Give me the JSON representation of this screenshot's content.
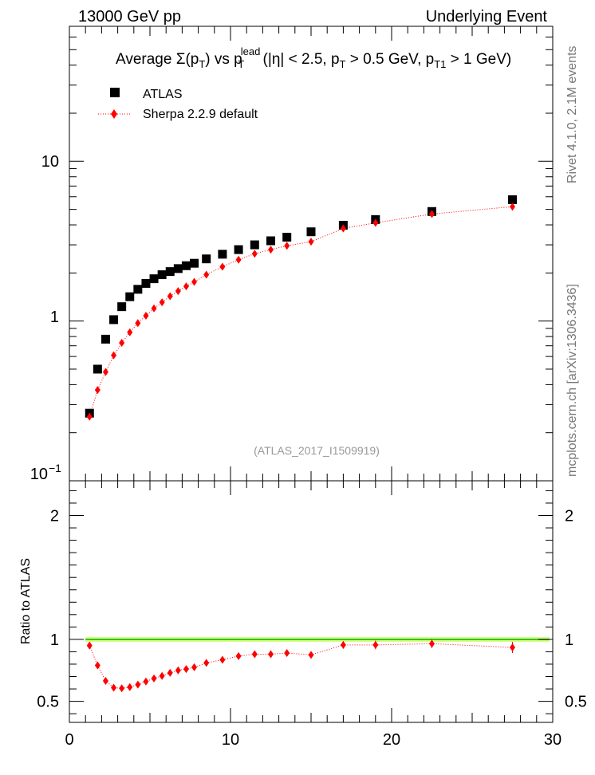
{
  "header": {
    "left": "13000 GeV pp",
    "right": "Underlying Event"
  },
  "side_labels": {
    "rivet": "Rivet 4.1.0,  2.1M events",
    "mcplots": "mcplots.cern.ch [arXiv:1306.3436]"
  },
  "chart_data": [
    {
      "type": "scatter",
      "panel": "main",
      "title": "Average Σ(pT) vs pT^lead (|η| < 2.5, pT > 0.5 GeV, pT1 > 1 GeV)",
      "title_parts": {
        "prefix": "Average ",
        "sigma": "Σ(p",
        "T": "T",
        "mid": ") vs p",
        "lead": "lead",
        "cuts_a": " (|η| < 2.5, p",
        "cuts_b": " > 0.5 GeV, p",
        "T1": "T1",
        "cuts_c": " > 1 GeV)"
      },
      "watermark": "(ATLAS_2017_I1509919)",
      "yscale": "log",
      "xlim": [
        0,
        30
      ],
      "ylim": [
        0.1,
        70
      ],
      "y_tick_labels": {
        "0.1": "10",
        "0.1_exp": "−1",
        "1": "1",
        "10": "10"
      },
      "x": [
        1.25,
        1.75,
        2.25,
        2.75,
        3.25,
        3.75,
        4.25,
        4.75,
        5.25,
        5.75,
        6.25,
        6.75,
        7.25,
        7.75,
        8.5,
        9.5,
        10.5,
        11.5,
        12.5,
        13.5,
        15.0,
        17.0,
        19.0,
        22.5,
        27.5
      ],
      "series": [
        {
          "name": "ATLAS",
          "marker": "square",
          "color": "#000000",
          "values": [
            0.265,
            0.5,
            0.77,
            1.02,
            1.23,
            1.42,
            1.58,
            1.72,
            1.84,
            1.95,
            2.04,
            2.13,
            2.22,
            2.3,
            2.45,
            2.62,
            2.8,
            3.0,
            3.18,
            3.35,
            3.62,
            3.98,
            4.32,
            4.85,
            5.75
          ]
        },
        {
          "name": "Sherpa 2.2.9 default",
          "marker": "diamond",
          "line": "dotted",
          "color": "#ff0000",
          "values": [
            0.252,
            0.37,
            0.48,
            0.61,
            0.73,
            0.85,
            0.97,
            1.08,
            1.2,
            1.31,
            1.43,
            1.54,
            1.65,
            1.76,
            1.95,
            2.19,
            2.42,
            2.64,
            2.8,
            2.96,
            3.14,
            3.8,
            4.12,
            4.68,
            5.2
          ]
        }
      ]
    },
    {
      "type": "scatter",
      "panel": "ratio",
      "ylabel": "Ratio to ATLAS",
      "xlim": [
        0,
        30
      ],
      "ylim": [
        0.33,
        2.28
      ],
      "x_ticks": [
        0,
        10,
        20,
        30
      ],
      "y_ticks": [
        0.5,
        1,
        2
      ],
      "x": [
        1.25,
        1.75,
        2.25,
        2.75,
        3.25,
        3.75,
        4.25,
        4.75,
        5.25,
        5.75,
        6.25,
        6.75,
        7.25,
        7.75,
        8.5,
        9.5,
        10.5,
        11.5,
        12.5,
        13.5,
        15.0,
        17.0,
        19.0,
        22.5,
        27.5
      ],
      "series": [
        {
          "name": "Sherpa 2.2.9 default / ATLAS",
          "color": "#ff0000",
          "values": [
            0.95,
            0.79,
            0.665,
            0.61,
            0.605,
            0.615,
            0.635,
            0.66,
            0.685,
            0.705,
            0.73,
            0.75,
            0.76,
            0.775,
            0.81,
            0.835,
            0.865,
            0.88,
            0.88,
            0.89,
            0.875,
            0.955,
            0.955,
            0.965,
            0.935
          ],
          "errors": [
            0.02,
            0.015,
            0.012,
            0.012,
            0.012,
            0.012,
            0.012,
            0.012,
            0.012,
            0.012,
            0.012,
            0.012,
            0.012,
            0.012,
            0.012,
            0.012,
            0.012,
            0.015,
            0.015,
            0.015,
            0.015,
            0.03,
            0.035,
            0.035,
            0.045
          ]
        }
      ],
      "band": {
        "low": 0.98,
        "high": 1.02,
        "color": "#ccff66",
        "line_color": "#00aa00"
      }
    }
  ]
}
